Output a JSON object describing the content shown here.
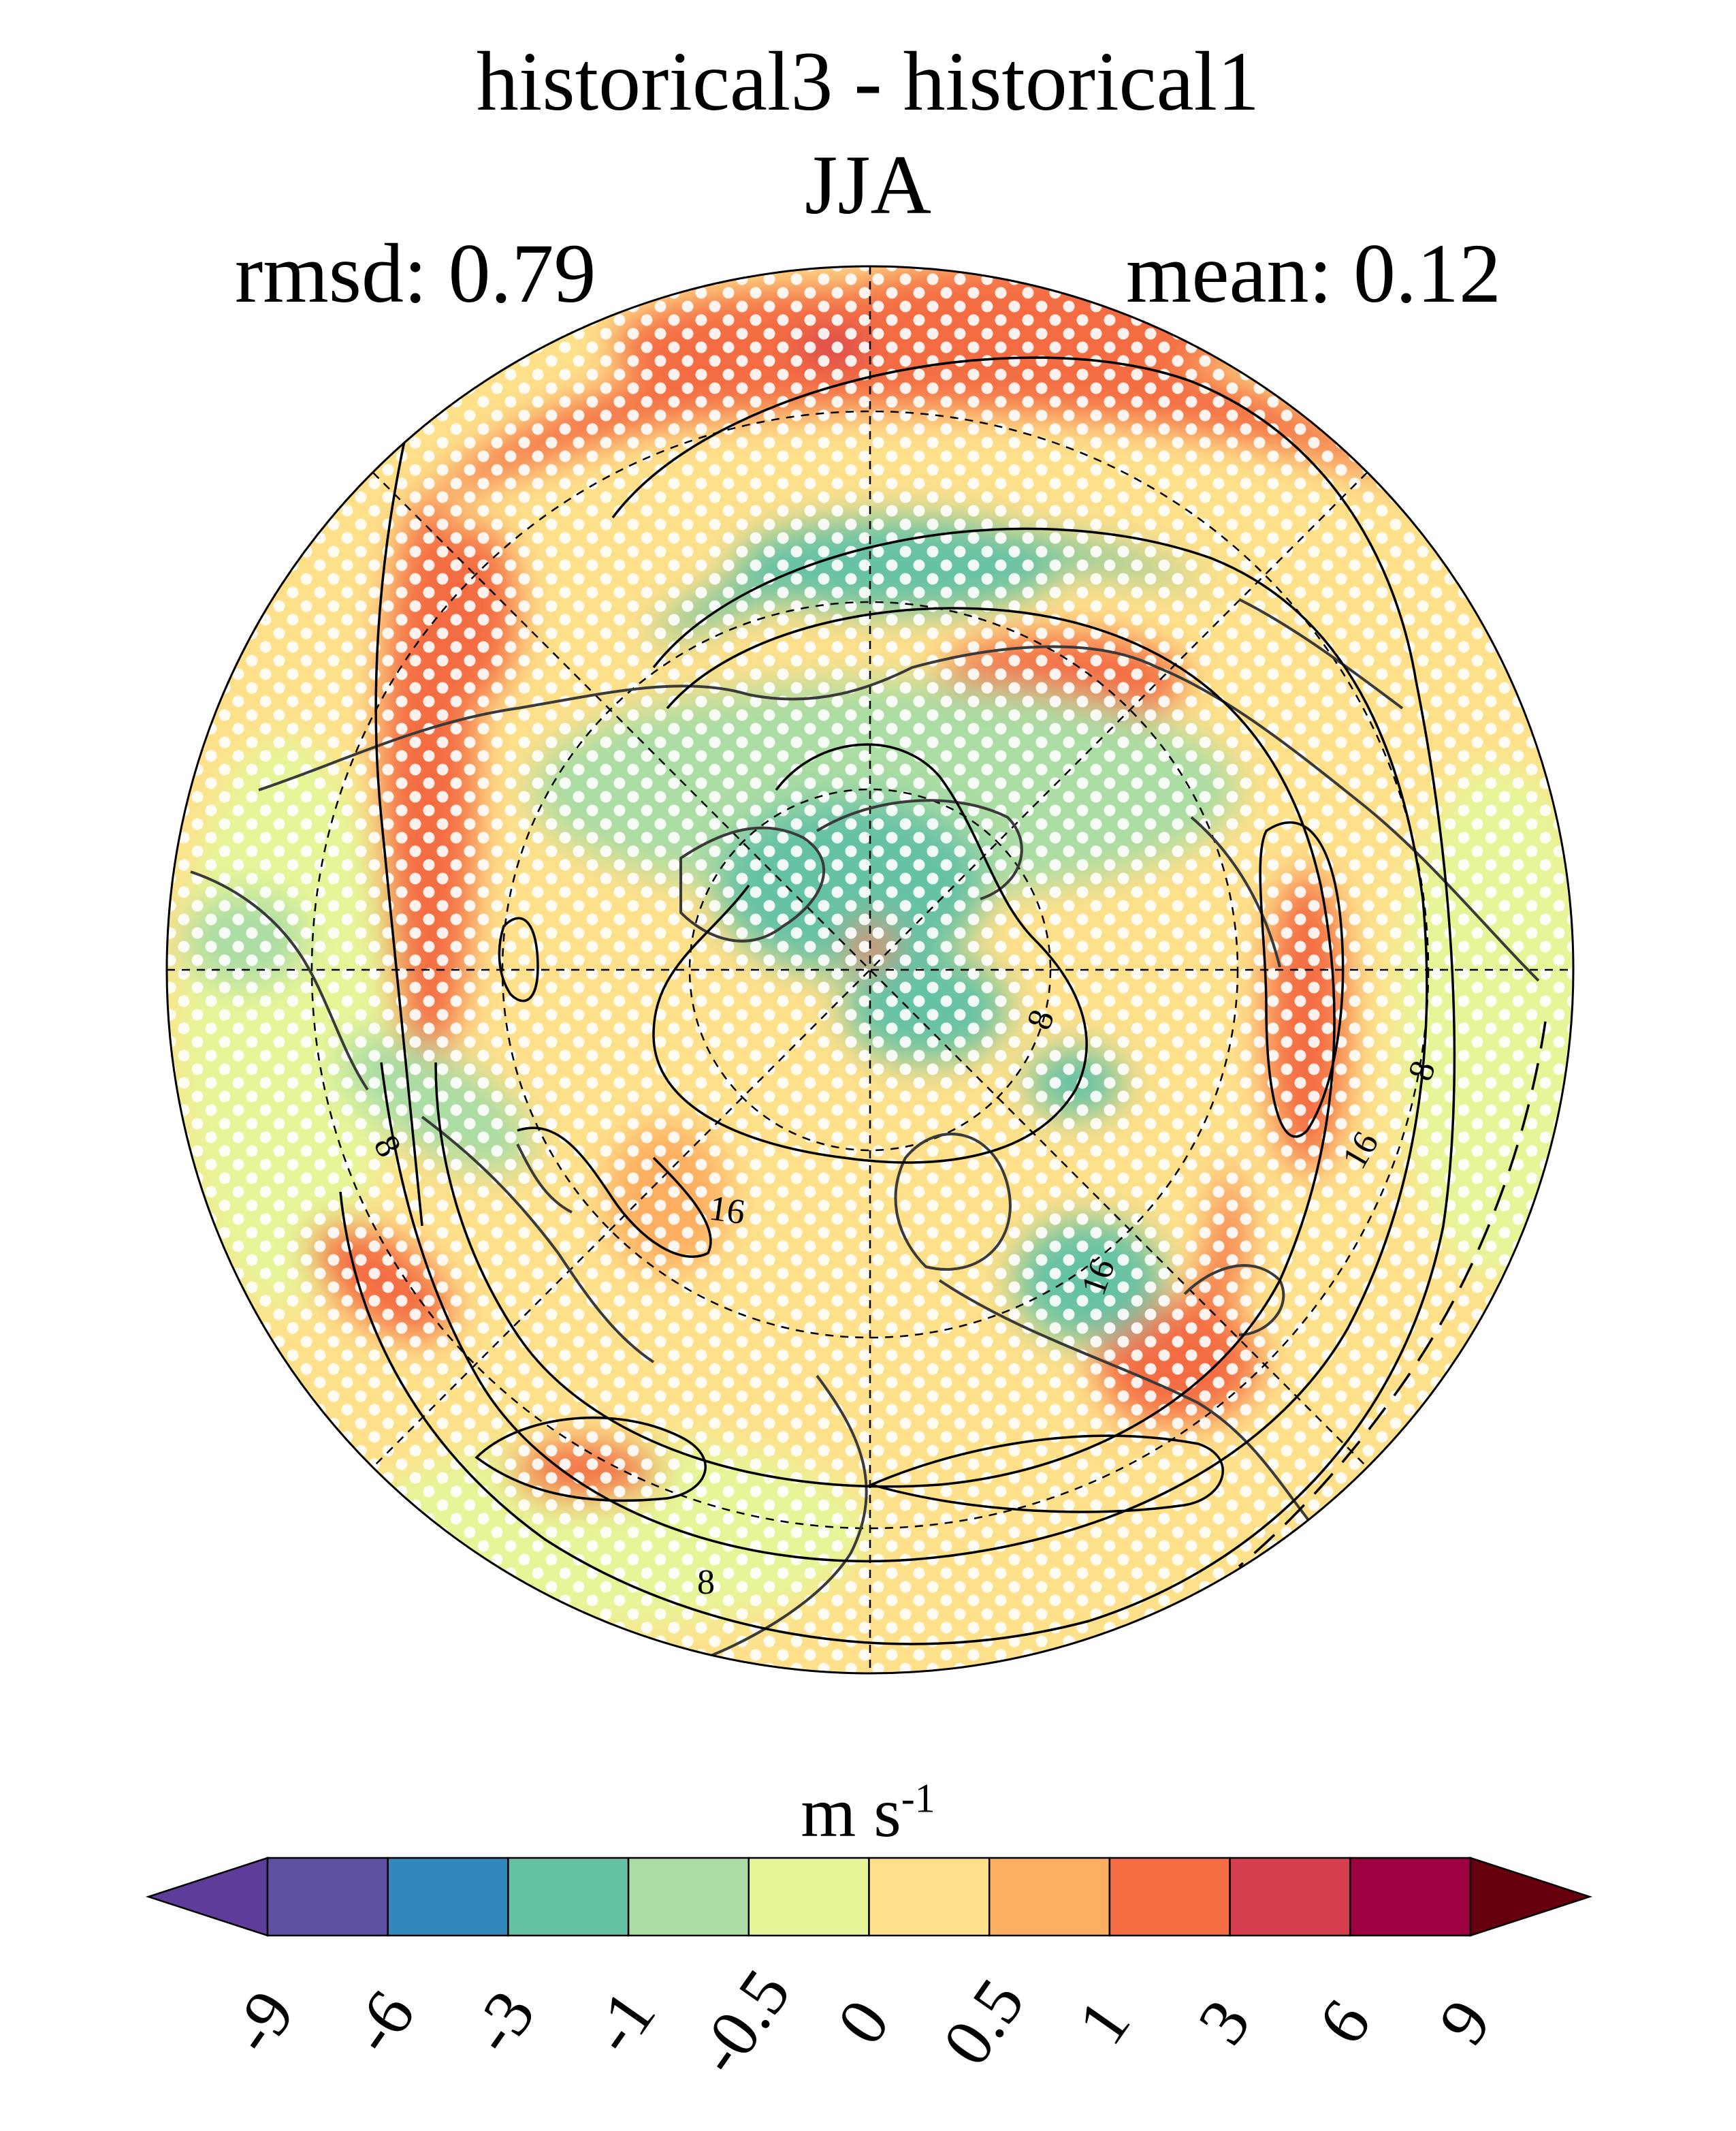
{
  "title": {
    "line1": "historical3 - historical1",
    "line2": "JJA"
  },
  "stats": {
    "rmsd_label": "rmsd: 0.79",
    "mean_label": "mean: 0.12"
  },
  "map": {
    "projection": "north-polar-stereographic",
    "contour_labels": [
      "8",
      "8",
      "8",
      "16",
      "16",
      "16",
      "8"
    ],
    "stippling": "white-dots"
  },
  "colorbar": {
    "unit": "m s",
    "unit_exponent": "-1",
    "levels": [
      "-9",
      "-6",
      "-3",
      "-1",
      "-0.5",
      "0",
      "0.5",
      "1",
      "3",
      "6",
      "9"
    ],
    "colors": [
      "#5e3c99",
      "#5e4fa2",
      "#3288bd",
      "#66c2a5",
      "#abdda4",
      "#e6f598",
      "#fee08b",
      "#fdae61",
      "#f46d43",
      "#d53e4f",
      "#9e0142",
      "#67000d"
    ]
  }
}
